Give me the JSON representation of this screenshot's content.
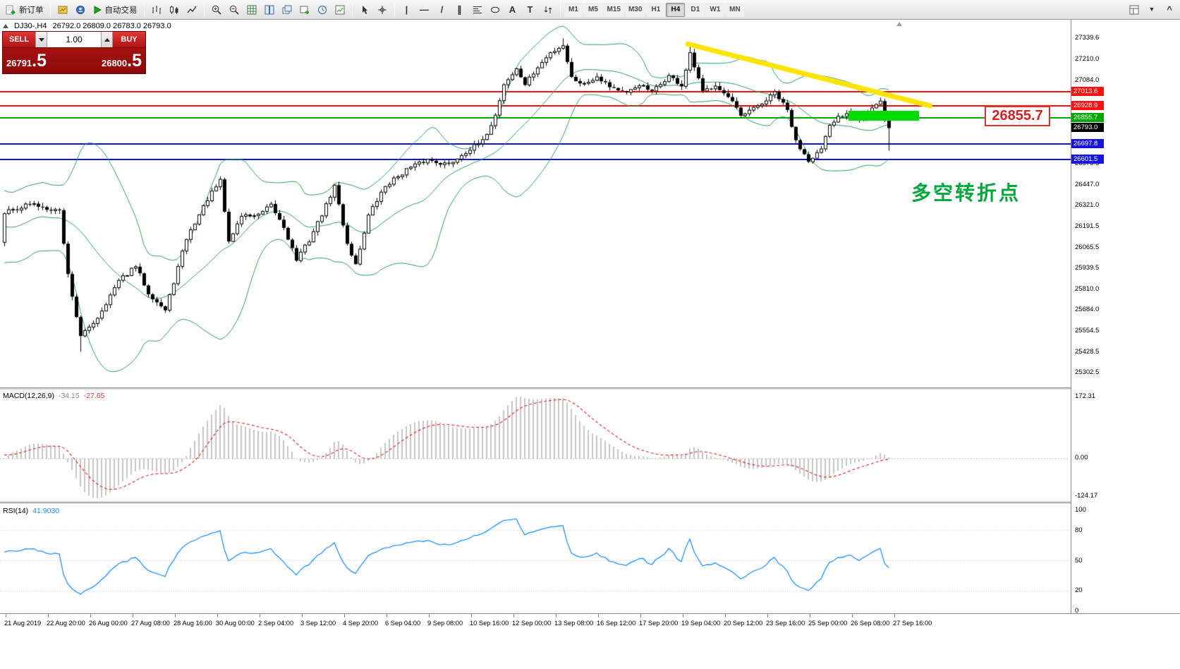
{
  "toolbar": {
    "new_order": "新订单",
    "autotrading": "自动交易",
    "timeframes": [
      "M1",
      "M5",
      "M15",
      "M30",
      "H1",
      "H4",
      "D1",
      "W1",
      "MN"
    ],
    "active_timeframe": "H4",
    "icons": [
      "new-order",
      "new-chart",
      "profiles",
      "autotrading",
      "bar-chart",
      "candlestick-chart",
      "line-chart",
      "zoom-in",
      "zoom-out",
      "grid",
      "tile-windows",
      "cascade-windows",
      "new-window",
      "clock",
      "indicators",
      "cursor",
      "crosshair",
      "vertical-line",
      "horizontal-line",
      "trendline",
      "equidistant-channel",
      "fibonacci",
      "ellipse",
      "text",
      "text-label",
      "arrows"
    ]
  },
  "order_panel": {
    "sell_label": "SELL",
    "buy_label": "BUY",
    "volume": "1.00",
    "sell_price": {
      "small": "26791",
      "big": ".5"
    },
    "buy_price": {
      "small": "26800",
      "big": ".5"
    }
  },
  "chart_header": {
    "symbol_period": "DJ30-,H4",
    "ohlc": "26792.0 26809.0 26783.0 26793.0"
  },
  "price_axis": {
    "ticks": [
      27339.6,
      27210.0,
      27084.0,
      26576.5,
      26447.0,
      26321.0,
      26191.5,
      26065.5,
      25939.5,
      25810.0,
      25684.0,
      25554.5,
      25428.5,
      25302.5
    ],
    "current": {
      "value": "26793.0",
      "price": 26793.0,
      "bg": "#000000",
      "fg": "#ffffff"
    }
  },
  "price_lines": [
    {
      "value": "27013.6",
      "price": 27013.6,
      "color": "#FF1010"
    },
    {
      "value": "26928.9",
      "price": 26928.9,
      "color": "#FF1010"
    },
    {
      "value": "26855.7",
      "price": 26855.7,
      "color": "#00A800"
    },
    {
      "value": "26697.8",
      "price": 26697.8,
      "color": "#1414E0"
    },
    {
      "value": "26601.5",
      "price": 26601.5,
      "color": "#1414E0"
    }
  ],
  "macd_panel": {
    "label": "MACD(12,26,9)",
    "value_main": "-34.15",
    "value_signal": "-27.65",
    "axis": [
      "172.31",
      "0.00",
      "-124.17"
    ]
  },
  "rsi_panel": {
    "label": "RSI(14)",
    "value": "41.9030",
    "axis": [
      "100",
      "80",
      "50",
      "20",
      "0"
    ],
    "levels": [
      80,
      50,
      20
    ]
  },
  "time_axis": [
    "21 Aug 2019",
    "22 Aug 20:00",
    "26 Aug 00:00",
    "27 Aug 08:00",
    "28 Aug 16:00",
    "30 Aug 00:00",
    "2 Sep 04:00",
    "3 Sep 12:00",
    "4 Sep 20:00",
    "6 Sep 04:00",
    "9 Sep 08:00",
    "10 Sep 16:00",
    "12 Sep 00:00",
    "13 Sep 08:00",
    "16 Sep 12:00",
    "17 Sep 20:00",
    "19 Sep 04:00",
    "20 Sep 12:00",
    "23 Sep 16:00",
    "25 Sep 00:00",
    "26 Sep 08:00",
    "27 Sep 16:00"
  ],
  "annotations": {
    "price_callout": "26855.7",
    "turning_point_text": "多空转折点",
    "trendline_color": "#FFE400",
    "highlight_color": "#00DC00"
  },
  "chart_data": {
    "type": "candlestick",
    "symbol": "DJ30-",
    "timeframe": "H4",
    "ohlc_header": {
      "open": 26792.0,
      "high": 26809.0,
      "low": 26783.0,
      "close": 26793.0
    },
    "candle_count": 210,
    "price_path": [
      [
        0,
        26280
      ],
      [
        6,
        26330
      ],
      [
        13,
        26290
      ],
      [
        15,
        25900
      ],
      [
        18,
        25520
      ],
      [
        22,
        25640
      ],
      [
        27,
        25860
      ],
      [
        31,
        25950
      ],
      [
        34,
        25790
      ],
      [
        38,
        25680
      ],
      [
        43,
        26120
      ],
      [
        48,
        26360
      ],
      [
        51,
        26470
      ],
      [
        53,
        26100
      ],
      [
        56,
        26260
      ],
      [
        60,
        26260
      ],
      [
        63,
        26320
      ],
      [
        66,
        26190
      ],
      [
        69,
        25990
      ],
      [
        72,
        26110
      ],
      [
        76,
        26320
      ],
      [
        78,
        26440
      ],
      [
        81,
        26090
      ],
      [
        83,
        25960
      ],
      [
        86,
        26260
      ],
      [
        90,
        26440
      ],
      [
        95,
        26540
      ],
      [
        100,
        26600
      ],
      [
        105,
        26570
      ],
      [
        109,
        26650
      ],
      [
        113,
        26710
      ],
      [
        116,
        26870
      ],
      [
        118,
        27060
      ],
      [
        121,
        27150
      ],
      [
        123,
        27060
      ],
      [
        126,
        27160
      ],
      [
        129,
        27250
      ],
      [
        132,
        27300
      ],
      [
        134,
        27100
      ],
      [
        137,
        27060
      ],
      [
        140,
        27110
      ],
      [
        143,
        27050
      ],
      [
        147,
        27000
      ],
      [
        150,
        27060
      ],
      [
        153,
        27010
      ],
      [
        157,
        27110
      ],
      [
        160,
        27050
      ],
      [
        162,
        27240
      ],
      [
        165,
        27010
      ],
      [
        168,
        27060
      ],
      [
        172,
        26950
      ],
      [
        174,
        26860
      ],
      [
        177,
        26910
      ],
      [
        180,
        26960
      ],
      [
        182,
        27010
      ],
      [
        185,
        26900
      ],
      [
        187,
        26710
      ],
      [
        190,
        26600
      ],
      [
        193,
        26660
      ],
      [
        195,
        26800
      ],
      [
        197,
        26860
      ],
      [
        200,
        26900
      ],
      [
        202,
        26850
      ],
      [
        205,
        26910
      ],
      [
        207,
        26950
      ],
      [
        208,
        26850
      ],
      [
        209,
        26793
      ]
    ],
    "extremes": [
      [
        18,
        "low",
        25430
      ],
      [
        132,
        "high",
        27340
      ],
      [
        162,
        "high",
        27290
      ],
      [
        209,
        "low",
        26655
      ]
    ],
    "horizontal_levels": [
      27013.6,
      26928.9,
      26855.7,
      26697.8,
      26601.5
    ],
    "trendline": {
      "from_price": 27298,
      "to_price": 26920,
      "direction": "descending"
    },
    "indicators": {
      "bollinger": {
        "period": 20,
        "deviation": 2
      },
      "macd": {
        "fast": 12,
        "slow": 26,
        "signal": 9,
        "values": [
          -34.15,
          -27.65
        ],
        "axis_range": [
          -124.17,
          172.31
        ]
      },
      "rsi": {
        "period": 14,
        "value": 41.903,
        "axis_range": [
          0,
          100
        ]
      }
    },
    "visible_price_range": [
      25302.5,
      27339.6
    ]
  }
}
